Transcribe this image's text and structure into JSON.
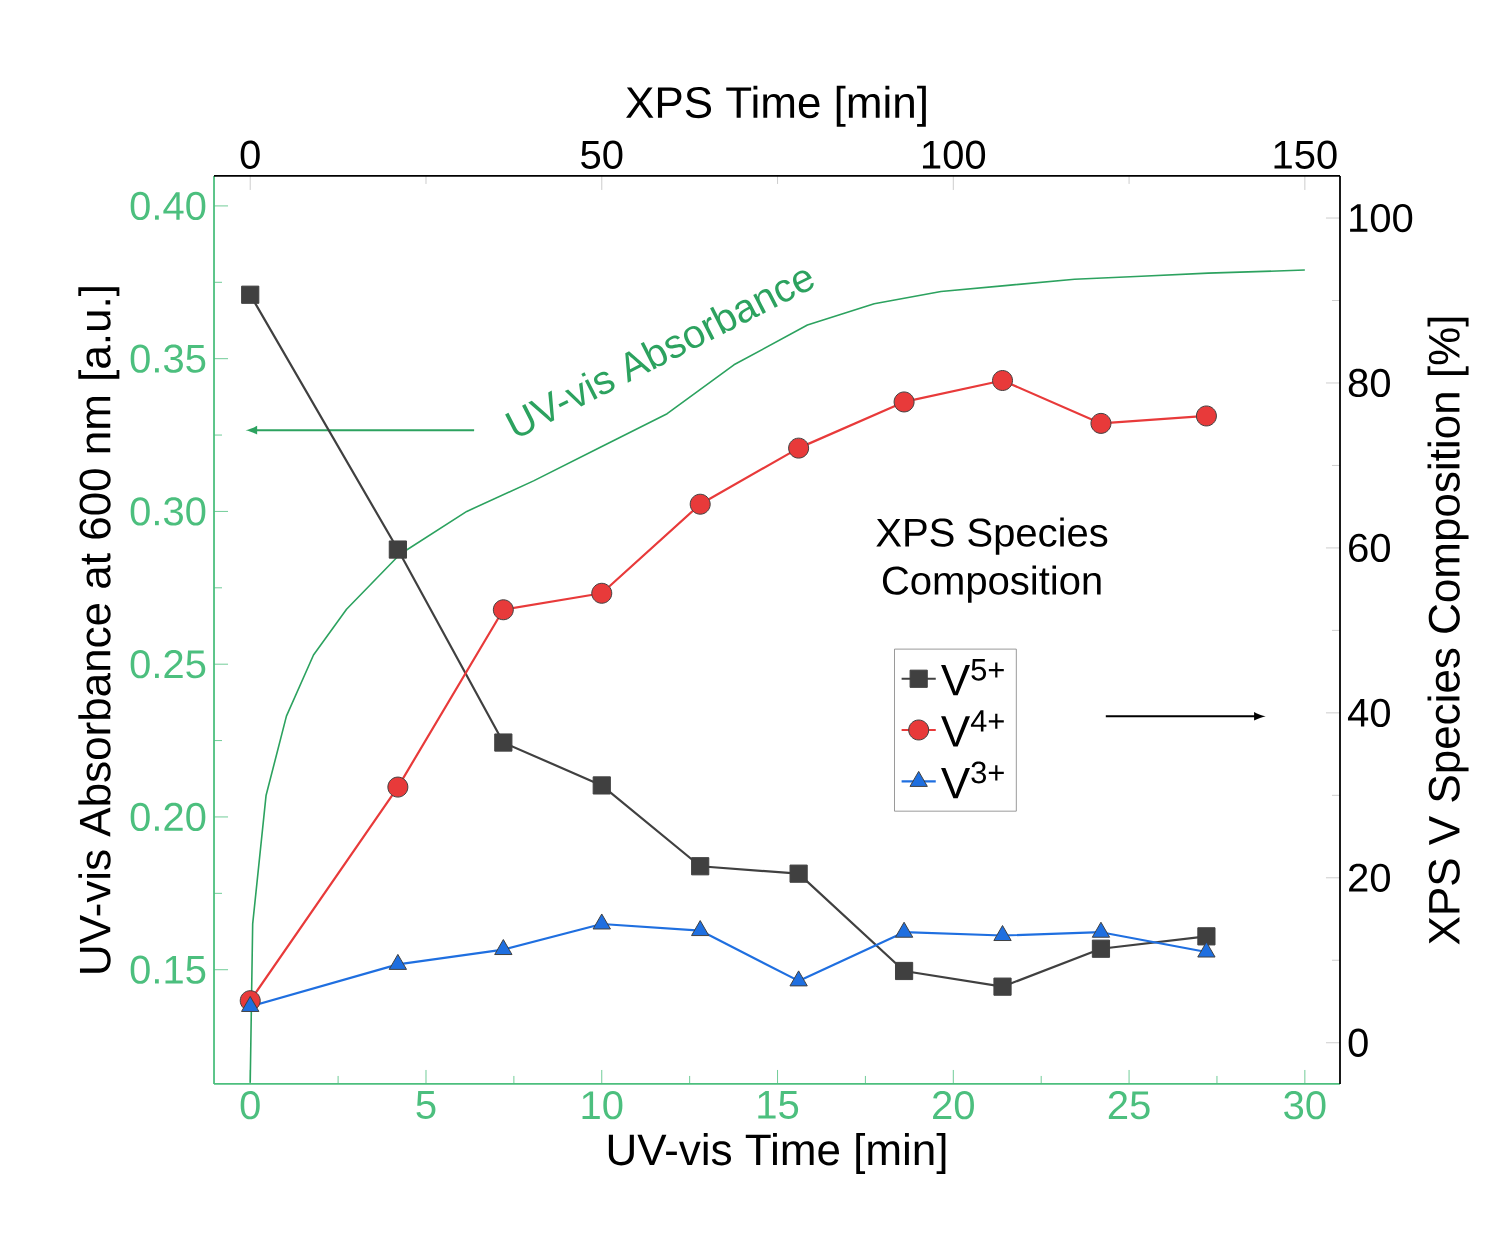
{
  "chart_data": {
    "type": "line",
    "xlabel": "UV-vis Time [min]",
    "ylabel": "UV-vis Absorbance at 600 nm [a.u.]",
    "x2label": "XPS Time [min]",
    "y2label": "XPS V Species Composition [%]",
    "legend_title": "XPS Species Composition",
    "legend": "right",
    "xlim": [
      -1.03,
      31.0
    ],
    "xticks": [
      0,
      5,
      10,
      15,
      20,
      25,
      30
    ],
    "ylim": [
      0.1126,
      0.4098
    ],
    "yticks": [
      0.15,
      {
        "value": 0.2,
        "label": "0.20"
      },
      0.25,
      {
        "value": 0.3,
        "label": "0.30"
      },
      0.35,
      {
        "value": 0.4,
        "label": "0.40"
      }
    ],
    "x2lim": [
      -5.15,
      155
    ],
    "x2ticks": [
      0,
      50,
      100,
      150
    ],
    "y2lim": [
      -5,
      105.1
    ],
    "y2ticks": [
      0,
      20,
      40,
      60,
      80,
      100
    ],
    "series": [
      {
        "name": "UV-vis Absorbance",
        "color": "#2ca25f",
        "marker": "none",
        "x": [
          0,
          0.07,
          0.45,
          1.03,
          1.8,
          2.74,
          4.26,
          6.16,
          8.06,
          9.96,
          11.86,
          13.76,
          15.85,
          17.75,
          19.65,
          21.55,
          23.45,
          25.35,
          27.25,
          30.0
        ],
        "values": [
          0.113,
          0.165,
          0.207,
          0.233,
          0.253,
          0.268,
          0.286,
          0.3,
          0.31,
          0.321,
          0.332,
          0.348,
          0.361,
          0.368,
          0.372,
          0.374,
          0.376,
          0.377,
          0.378,
          0.379
        ]
      },
      {
        "name": "V$^{5+}$",
        "color": "#404040",
        "marker": "square",
        "axis": "y2",
        "x": [
          0,
          4.2,
          7.2,
          10,
          12.8,
          15.6,
          18.6,
          21.4,
          24.2,
          27.2
        ],
        "values": [
          90.7,
          59.8,
          36.4,
          31.2,
          21.4,
          20.5,
          8.7,
          6.8,
          11.4,
          12.9
        ]
      },
      {
        "name": "V$^{4+}$",
        "color": "#e83a3a",
        "marker": "circle",
        "axis": "y2",
        "x": [
          0,
          4.2,
          7.2,
          10,
          12.8,
          15.6,
          18.6,
          21.4,
          24.2,
          27.2
        ],
        "values": [
          5.1,
          31.0,
          52.5,
          54.5,
          65.3,
          72.1,
          77.7,
          80.3,
          75.1,
          76.0
        ]
      },
      {
        "name": "V$^{3+}$",
        "color": "#1f6fe0",
        "marker": "triangle",
        "axis": "y2",
        "x": [
          0,
          4.2,
          7.2,
          10,
          12.8,
          15.6,
          18.6,
          21.4,
          24.2,
          27.2
        ],
        "values": [
          4.4,
          9.5,
          11.3,
          14.4,
          13.6,
          7.5,
          13.4,
          13.0,
          13.4,
          11.0
        ]
      }
    ]
  }
}
